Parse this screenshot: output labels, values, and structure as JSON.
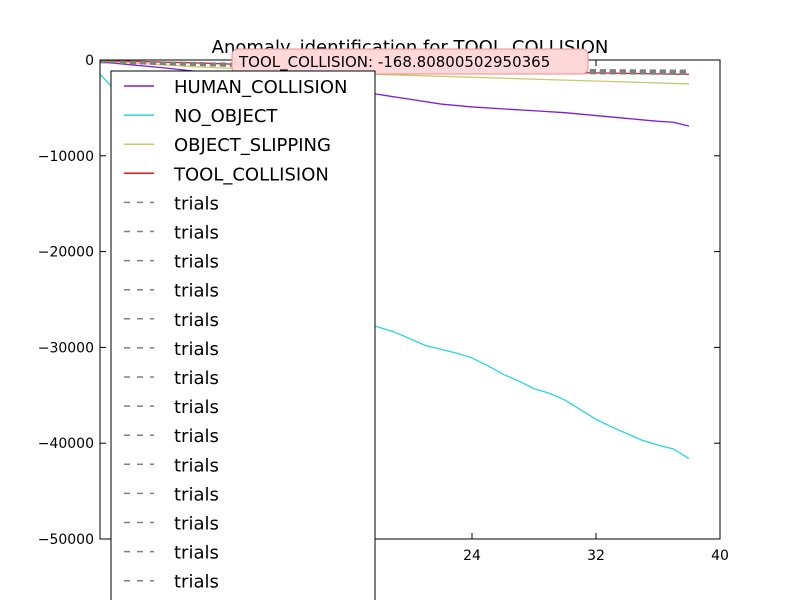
{
  "chart_data": {
    "type": "line",
    "title": "Anomaly_identification for TOOL_COLLISION",
    "xlabel": "",
    "ylabel": "",
    "xlim": [
      0,
      40
    ],
    "ylim": [
      -50000,
      0
    ],
    "x_ticks": [
      24,
      32,
      40
    ],
    "y_ticks": [
      0,
      -10000,
      -20000,
      -30000,
      -40000,
      -50000
    ],
    "x_tick_labels": [
      "24",
      "32",
      "40"
    ],
    "y_tick_labels": [
      "0",
      "−10000",
      "−20000",
      "−30000",
      "−40000",
      "−50000"
    ],
    "grid": false,
    "legend_position": "upper-left",
    "annotation": {
      "text": "TOOL_COLLISION: -168.80800502950365",
      "background": "#ffd9d9",
      "border": "#f08c8c"
    },
    "series": [
      {
        "name": "HUMAN_COLLISION",
        "color": "#7b1fd6",
        "style": "solid",
        "x": [
          0,
          4,
          8,
          12,
          16,
          18,
          20,
          22,
          24,
          26,
          28,
          30,
          32,
          34,
          36,
          37,
          38
        ],
        "y": [
          -200,
          -800,
          -1500,
          -2200,
          -3100,
          -3600,
          -4100,
          -4600,
          -4900,
          -5100,
          -5300,
          -5500,
          -5800,
          -6100,
          -6400,
          -6500,
          -6900
        ]
      },
      {
        "name": "NO_OBJECT",
        "color": "#2ad6dc",
        "style": "solid",
        "x": [
          0,
          1,
          17,
          18,
          19,
          20,
          21,
          22,
          23,
          24,
          25,
          26,
          27,
          28,
          29,
          30,
          31,
          32,
          33,
          34,
          35,
          36,
          37,
          38
        ],
        "y": [
          -1500,
          -3200,
          -27500,
          -27900,
          -28400,
          -29100,
          -29800,
          -30200,
          -30600,
          -31100,
          -31900,
          -32800,
          -33500,
          -34300,
          -34800,
          -35500,
          -36500,
          -37500,
          -38300,
          -39000,
          -39700,
          -40200,
          -40600,
          -41600
        ]
      },
      {
        "name": "OBJECT_SLIPPING",
        "color": "#c9c96a",
        "style": "solid",
        "x": [
          0,
          6,
          12,
          18,
          24,
          30,
          34,
          38
        ],
        "y": [
          -100,
          -700,
          -1100,
          -1500,
          -1800,
          -2100,
          -2300,
          -2500
        ]
      },
      {
        "name": "TOOL_COLLISION",
        "color": "#e31a1c",
        "style": "solid",
        "x": [
          0,
          6,
          12,
          18,
          24,
          30,
          34,
          38
        ],
        "y": [
          -50,
          -300,
          -600,
          -900,
          -1100,
          -1300,
          -1400,
          -1500
        ]
      },
      {
        "name": "trials",
        "color": "#808080",
        "style": "dashed",
        "x": [
          0,
          12,
          24,
          32,
          38
        ],
        "y": [
          -100,
          -500,
          -900,
          -1050,
          -1100
        ]
      },
      {
        "name": "trials",
        "color": "#808080",
        "style": "dashed",
        "x": [
          0,
          12,
          24,
          32,
          38
        ],
        "y": [
          -120,
          -540,
          -940,
          -1100,
          -1150
        ]
      },
      {
        "name": "trials",
        "color": "#808080",
        "style": "dashed",
        "x": [
          0,
          12,
          24,
          32,
          38
        ],
        "y": [
          -140,
          -580,
          -980,
          -1150,
          -1200
        ]
      },
      {
        "name": "trials",
        "color": "#808080",
        "style": "dashed",
        "x": [
          0,
          12,
          24,
          32,
          38
        ],
        "y": [
          -160,
          -620,
          -1020,
          -1200,
          -1250
        ]
      },
      {
        "name": "trials",
        "color": "#808080",
        "style": "dashed",
        "x": [
          0,
          12,
          24,
          32,
          38
        ],
        "y": [
          -180,
          -660,
          -1060,
          -1250,
          -1300
        ]
      },
      {
        "name": "trials",
        "color": "#808080",
        "style": "dashed",
        "x": [
          0,
          12,
          24,
          32,
          38
        ],
        "y": [
          -200,
          -700,
          -1100,
          -1300,
          -1350
        ]
      },
      {
        "name": "trials",
        "color": "#808080",
        "style": "dashed",
        "x": [
          0,
          12,
          24,
          32,
          38
        ],
        "y": [
          -220,
          -740,
          -1140,
          -1350,
          -1400
        ]
      },
      {
        "name": "trials",
        "color": "#808080",
        "style": "dashed",
        "x": [
          0,
          12,
          24,
          32,
          38
        ],
        "y": [
          -240,
          -780,
          -1180,
          -1400,
          -1450
        ]
      },
      {
        "name": "trials",
        "color": "#808080",
        "style": "dashed",
        "x": [
          0,
          12,
          24,
          32,
          38
        ],
        "y": [
          -130,
          -560,
          -960,
          -1120,
          -1180
        ]
      },
      {
        "name": "trials",
        "color": "#808080",
        "style": "dashed",
        "x": [
          0,
          12,
          24,
          32,
          38
        ],
        "y": [
          -170,
          -640,
          -1040,
          -1220,
          -1280
        ]
      },
      {
        "name": "trials",
        "color": "#808080",
        "style": "dashed",
        "x": [
          0,
          12,
          24,
          32,
          38
        ],
        "y": [
          -210,
          -720,
          -1120,
          -1320,
          -1380
        ]
      },
      {
        "name": "trials",
        "color": "#808080",
        "style": "dashed",
        "x": [
          0,
          12,
          24,
          32,
          38
        ],
        "y": [
          -150,
          -600,
          -1000,
          -1180,
          -1230
        ]
      },
      {
        "name": "trials",
        "color": "#808080",
        "style": "dashed",
        "x": [
          0,
          12,
          24,
          32,
          38
        ],
        "y": [
          -190,
          -680,
          -1080,
          -1280,
          -1330
        ]
      },
      {
        "name": "trials",
        "color": "#808080",
        "style": "dashed",
        "x": [
          0,
          12,
          24,
          32,
          38
        ],
        "y": [
          -230,
          -760,
          -1160,
          -1380,
          -1430
        ]
      }
    ]
  }
}
